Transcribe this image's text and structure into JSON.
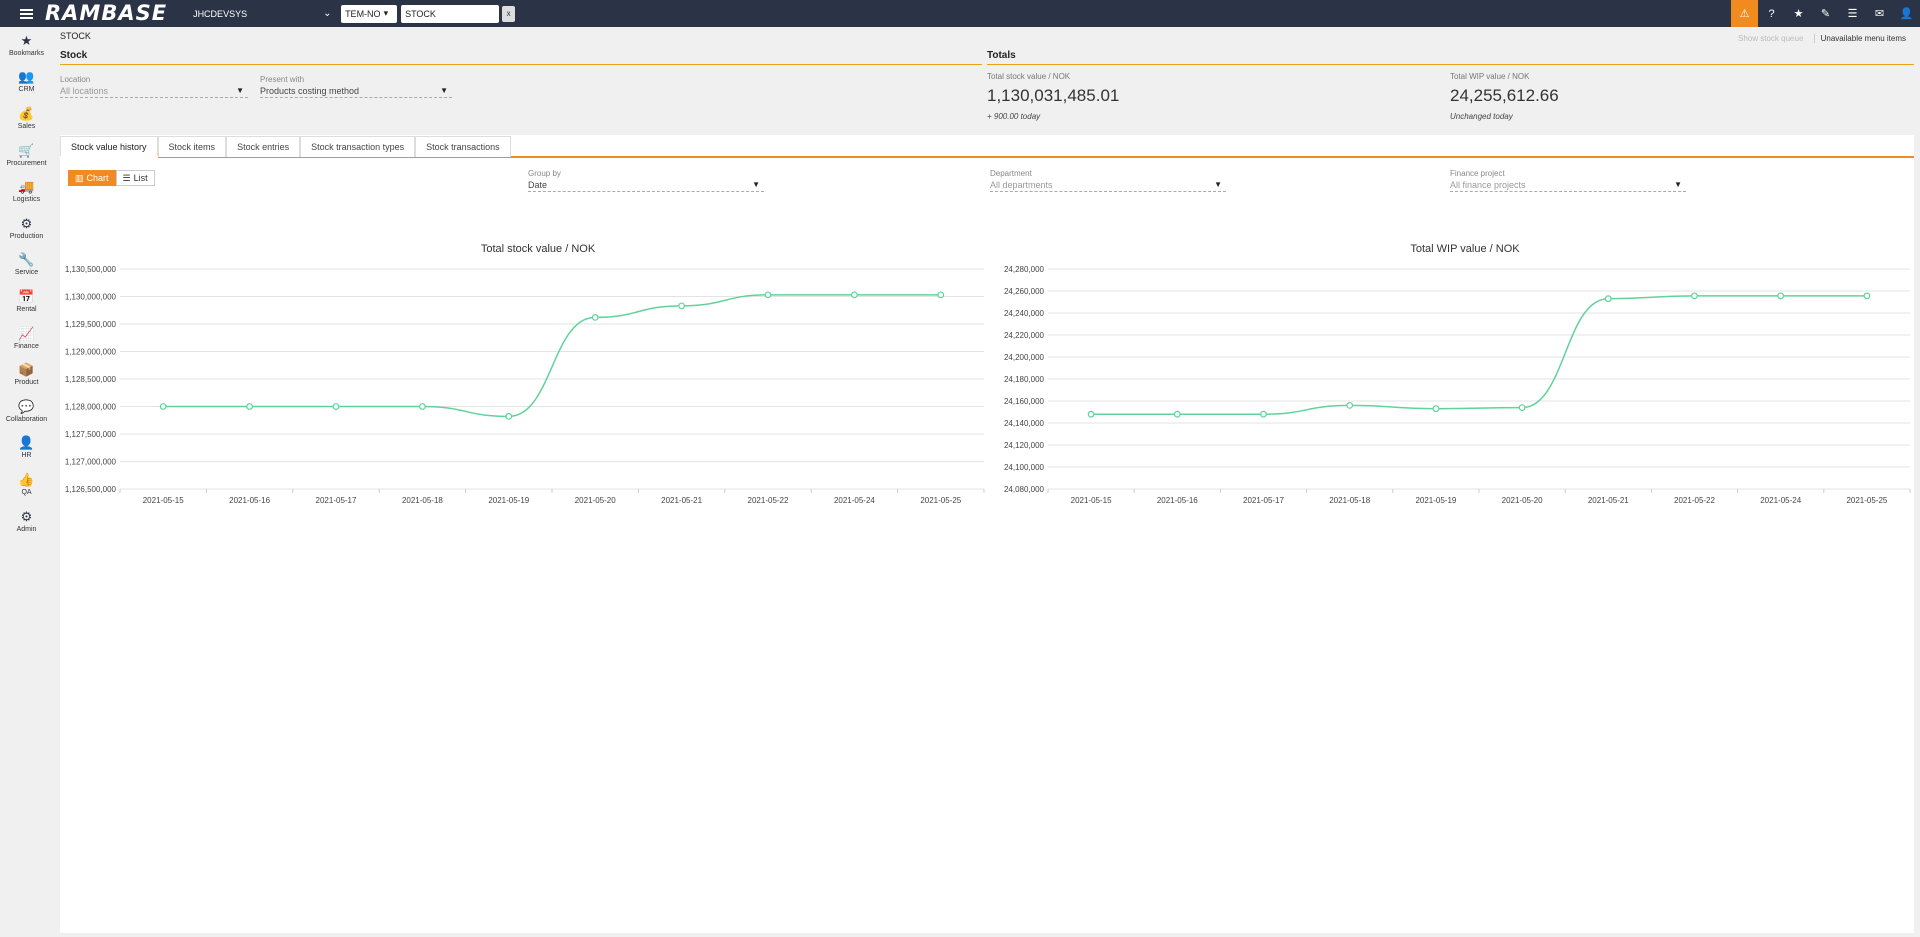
{
  "topbar": {
    "logo": "RAMBASE",
    "database": "JHCDEVSYS",
    "company": "TEM-NO",
    "command": "STOCK",
    "clear": "x",
    "icons": [
      "warning-icon",
      "help-icon",
      "star-icon",
      "attach-icon",
      "list-icon",
      "mail-icon",
      "user-icon"
    ]
  },
  "sidebar": {
    "items": [
      {
        "label": "Bookmarks",
        "icon": "★"
      },
      {
        "label": "CRM",
        "icon": "👥"
      },
      {
        "label": "Sales",
        "icon": "💰"
      },
      {
        "label": "Procurement",
        "icon": "🛒"
      },
      {
        "label": "Logistics",
        "icon": "🚚"
      },
      {
        "label": "Production",
        "icon": "⚙"
      },
      {
        "label": "Service",
        "icon": "🔧"
      },
      {
        "label": "Rental",
        "icon": "📅"
      },
      {
        "label": "Finance",
        "icon": "📈"
      },
      {
        "label": "Product",
        "icon": "📦"
      },
      {
        "label": "Collaboration",
        "icon": "💬"
      },
      {
        "label": "HR",
        "icon": "👤"
      },
      {
        "label": "QA",
        "icon": "👍"
      },
      {
        "label": "Admin",
        "icon": "⚙"
      }
    ]
  },
  "page": {
    "title": "STOCK",
    "show_stock_queue": "Show stock queue",
    "unavailable_menu_items": "Unavailable menu items"
  },
  "stock": {
    "heading": "Stock",
    "location_label": "Location",
    "location_value": "All locations",
    "present_label": "Present with",
    "present_value": "Products costing method"
  },
  "totals": {
    "heading": "Totals",
    "stock_label": "Total stock value / NOK",
    "stock_value": "1,130,031,485.01",
    "stock_change": "+ 900.00 today",
    "wip_label": "Total WIP value / NOK",
    "wip_value": "24,255,612.66",
    "wip_change": "Unchanged today"
  },
  "tabs": [
    "Stock value history",
    "Stock items",
    "Stock entries",
    "Stock transaction types",
    "Stock transactions"
  ],
  "view": {
    "chart_label": "Chart",
    "list_label": "List"
  },
  "filters": {
    "group_by_label": "Group by",
    "group_by_value": "Date",
    "department_label": "Department",
    "department_value": "All departments",
    "finance_label": "Finance project",
    "finance_value": "All finance projects"
  },
  "chart_data": [
    {
      "type": "line",
      "title": "Total stock value / NOK",
      "x": [
        "2021-05-15",
        "2021-05-16",
        "2021-05-17",
        "2021-05-18",
        "2021-05-19",
        "2021-05-20",
        "2021-05-21",
        "2021-05-22",
        "2021-05-24",
        "2021-05-25"
      ],
      "y": [
        1128000000,
        1128000000,
        1128000000,
        1128000000,
        1127820000,
        1129620000,
        1129830000,
        1130030000,
        1130030000,
        1130030000
      ],
      "yticks": [
        "1,130,500,000",
        "1,130,000,000",
        "1,129,500,000",
        "1,129,000,000",
        "1,128,500,000",
        "1,128,000,000",
        "1,127,500,000",
        "1,127,000,000",
        "1,126,500,000"
      ],
      "ylim": [
        1126500000,
        1130500000
      ],
      "color": "#5fd39a"
    },
    {
      "type": "line",
      "title": "Total WIP value / NOK",
      "x": [
        "2021-05-15",
        "2021-05-16",
        "2021-05-17",
        "2021-05-18",
        "2021-05-19",
        "2021-05-20",
        "2021-05-21",
        "2021-05-22",
        "2021-05-24",
        "2021-05-25"
      ],
      "y": [
        24148000,
        24148000,
        24148000,
        24156000,
        24153000,
        24154000,
        24253000,
        24255600,
        24255600,
        24255600
      ],
      "yticks": [
        "24,280,000",
        "24,260,000",
        "24,240,000",
        "24,220,000",
        "24,200,000",
        "24,180,000",
        "24,160,000",
        "24,140,000",
        "24,120,000",
        "24,100,000",
        "24,080,000"
      ],
      "ylim": [
        24080000,
        24280000
      ],
      "color": "#5fd39a"
    }
  ]
}
